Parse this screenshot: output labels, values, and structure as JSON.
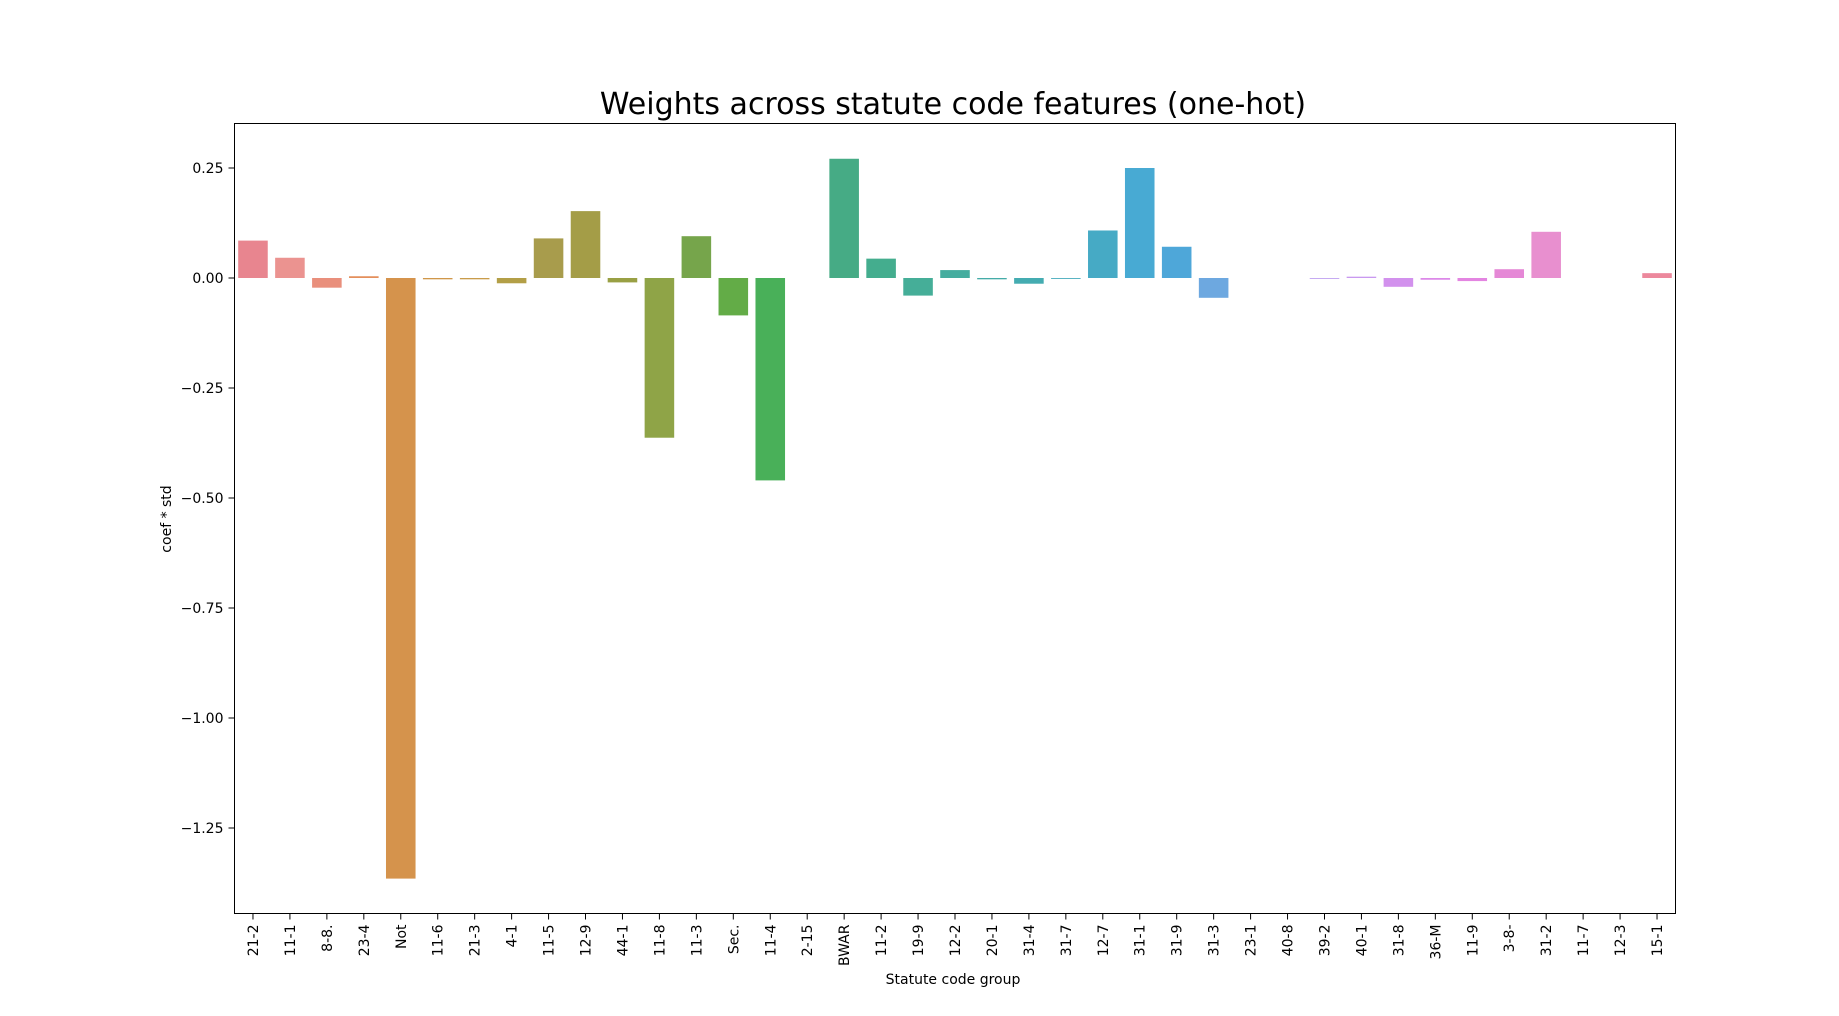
{
  "chart_data": {
    "type": "bar",
    "title": "Weights across statute code features (one-hot)",
    "xlabel": "Statute code group",
    "ylabel": "coef * std",
    "ylim": [
      -1.44,
      0.35
    ],
    "yticks": [
      0.25,
      0.0,
      -0.25,
      -0.5,
      -0.75,
      -1.0,
      -1.25
    ],
    "ytick_labels": [
      "0.25",
      "0.00",
      "−0.25",
      "−0.50",
      "−0.75",
      "−1.00",
      "−1.25"
    ],
    "grid": false,
    "legend": "none",
    "categories": [
      "21-2",
      "11-1",
      "8-8.",
      "23-4",
      "Not",
      "11-6",
      "21-3",
      "4-1",
      "11-5",
      "12-9",
      "44-1",
      "11-8",
      "11-3",
      "Sec.",
      "11-4",
      "2-15",
      "BWAR",
      "11-2",
      "19-9",
      "12-2",
      "20-1",
      "31-4",
      "31-7",
      "12-7",
      "31-1",
      "31-9",
      "31-3",
      "23-1",
      "40-8",
      "39-2",
      "40-1",
      "31-8",
      "36-M",
      "11-9",
      "3-8-",
      "31-2",
      "11-7",
      "12-3",
      "15-1"
    ],
    "values": [
      0.085,
      0.046,
      -0.022,
      0.004,
      -1.365,
      -0.003,
      -0.003,
      -0.012,
      0.09,
      0.152,
      -0.01,
      -0.363,
      0.095,
      -0.085,
      -0.46,
      0.0,
      0.271,
      0.044,
      -0.04,
      0.018,
      -0.003,
      -0.013,
      -0.002,
      0.108,
      0.25,
      0.071,
      -0.045,
      0.0,
      0.0,
      -0.002,
      0.003,
      -0.02,
      -0.004,
      -0.007,
      0.02,
      0.105,
      0.0,
      0.0,
      0.011
    ],
    "colors": [
      "#e8858f",
      "#eb9390",
      "#e98f7c",
      "#e48f5c",
      "#d5934c",
      "#d0974a",
      "#c99c4b",
      "#b39f47",
      "#a89c4c",
      "#a49d47",
      "#99a044",
      "#8fa447",
      "#76a54b",
      "#63ac47",
      "#49b059",
      "#45ad75",
      "#46ab85",
      "#44ad8e",
      "#45ae98",
      "#45ad9f",
      "#45aca8",
      "#44acb1",
      "#44abbb",
      "#46aac5",
      "#48aad3",
      "#4ea7d9",
      "#6da8e0",
      "#8ea7ea",
      "#a7a4ef",
      "#bfa0f1",
      "#c999f0",
      "#d291ed",
      "#dc89e8",
      "#e385e1",
      "#e588d6",
      "#e88fcf",
      "#eb88bd",
      "#ec88ab",
      "#ec889c"
    ]
  }
}
